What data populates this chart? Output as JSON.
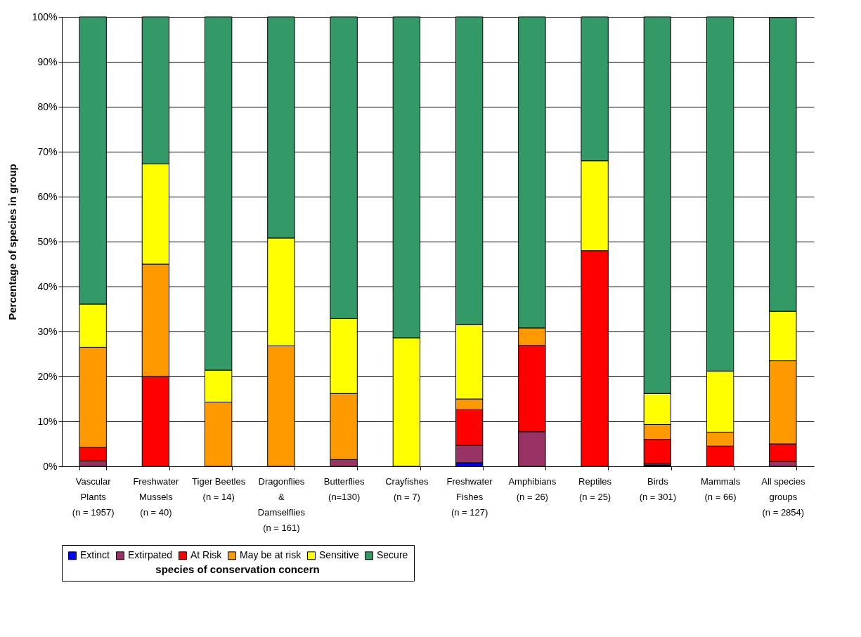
{
  "chart_data": {
    "type": "bar",
    "stacked": true,
    "ylabel": "Percentage of species in group",
    "legend_title": "species of conservation concern",
    "legend": "bottom",
    "grid": "y",
    "categories": [
      "Vascular\nPlants\n(n = 1957)",
      "Freshwater\nMussels\n(n = 40)",
      "Tiger Beetles\n(n = 14)",
      "Dragonflies\n&\nDamselflies\n(n = 161)",
      "Butterflies\n(n=130)",
      "Crayfishes\n(n = 7)",
      "Freshwater\nFishes\n(n = 127)",
      "Amphibians\n(n = 26)",
      "Reptiles\n(n = 25)",
      "Birds\n(n = 301)",
      "Mammals\n(n = 66)",
      "All species\ngroups\n(n = 2854)"
    ],
    "ylim": [
      0,
      100
    ],
    "yticks": [
      {
        "value": 0,
        "label": "0%"
      },
      {
        "value": 10,
        "label": "10%"
      },
      {
        "value": 20,
        "label": "20%"
      },
      {
        "value": 30,
        "label": "30%"
      },
      {
        "value": 40,
        "label": "40%"
      },
      {
        "value": 50,
        "label": "50%"
      },
      {
        "value": 60,
        "label": "60%"
      },
      {
        "value": 70,
        "label": "70%"
      },
      {
        "value": 80,
        "label": "80%"
      },
      {
        "value": 90,
        "label": "90%"
      },
      {
        "value": 100,
        "label": "100%"
      }
    ],
    "series": [
      {
        "name": "Extinct",
        "color": "#0000ff",
        "values": [
          0,
          0,
          0,
          0,
          0,
          0,
          0.8,
          0,
          0,
          0.3,
          0,
          null
        ]
      },
      {
        "name": "Extirpated",
        "color": "#993366",
        "values": [
          1.2,
          0,
          0,
          0,
          1.5,
          0,
          3.9,
          7.7,
          0,
          0.3,
          0,
          1.1
        ]
      },
      {
        "name": "At Risk",
        "color": "#ff0000",
        "values": [
          3,
          20,
          0,
          0,
          0,
          0,
          7.9,
          19.2,
          48,
          5.4,
          4.5,
          3.9
        ]
      },
      {
        "name": "May be at risk",
        "color": "#ff9900",
        "values": [
          22.3,
          25,
          14.3,
          26.8,
          14.7,
          0,
          2.4,
          3.9,
          0,
          3.3,
          3.1,
          18.5
        ]
      },
      {
        "name": "Sensitive",
        "color": "#ffff00",
        "values": [
          9.6,
          22.3,
          7.1,
          24,
          16.7,
          28.6,
          16.5,
          0,
          20,
          6.9,
          13.6,
          11
        ]
      },
      {
        "name": "Secure",
        "color": "#339966",
        "values": [
          63.9,
          32.7,
          78.6,
          49.2,
          67.1,
          71.4,
          68.5,
          69.2,
          32,
          83.8,
          78.8,
          65.4
        ]
      }
    ]
  }
}
